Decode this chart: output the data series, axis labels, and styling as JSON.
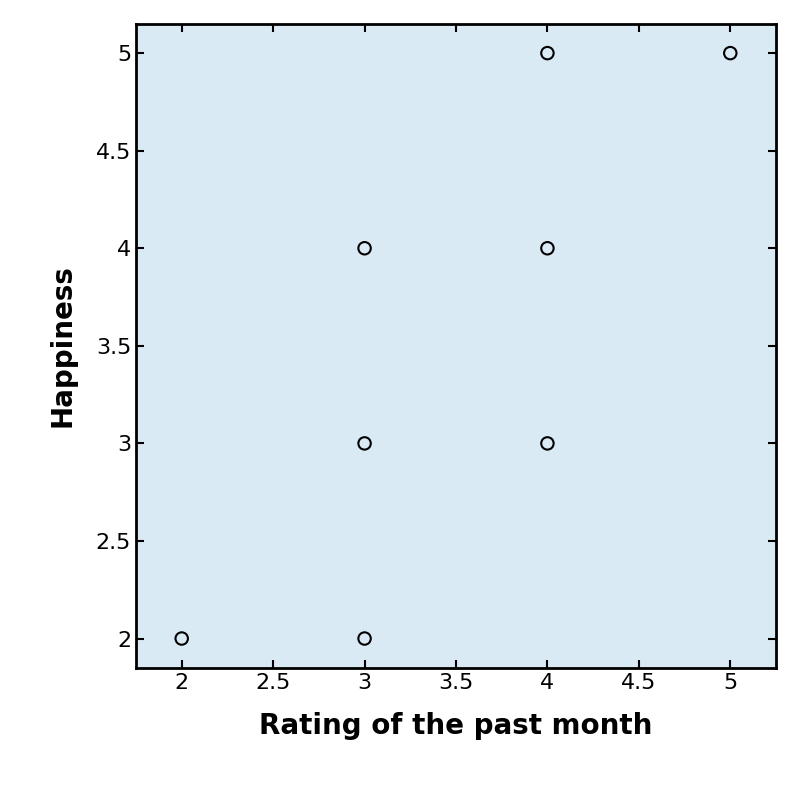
{
  "x": [
    2,
    3,
    3,
    3,
    4,
    4,
    4,
    5
  ],
  "y": [
    2,
    2,
    3,
    4,
    3,
    4,
    5,
    5
  ],
  "xlabel": "Rating of the past month",
  "ylabel": "Happiness",
  "xlim": [
    1.75,
    5.25
  ],
  "ylim": [
    1.85,
    5.15
  ],
  "xticks": [
    2,
    2.5,
    3,
    3.5,
    4,
    4.5,
    5
  ],
  "yticks": [
    2,
    2.5,
    3,
    3.5,
    4,
    4.5,
    5
  ],
  "background_color": "#daeaf5",
  "fig_background_color": "#ffffff",
  "marker_color": "black",
  "marker_size": 80,
  "xlabel_fontsize": 20,
  "ylabel_fontsize": 20,
  "tick_fontsize": 16,
  "xlabel_fontweight": "bold",
  "ylabel_fontweight": "bold",
  "spine_linewidth": 2.0
}
